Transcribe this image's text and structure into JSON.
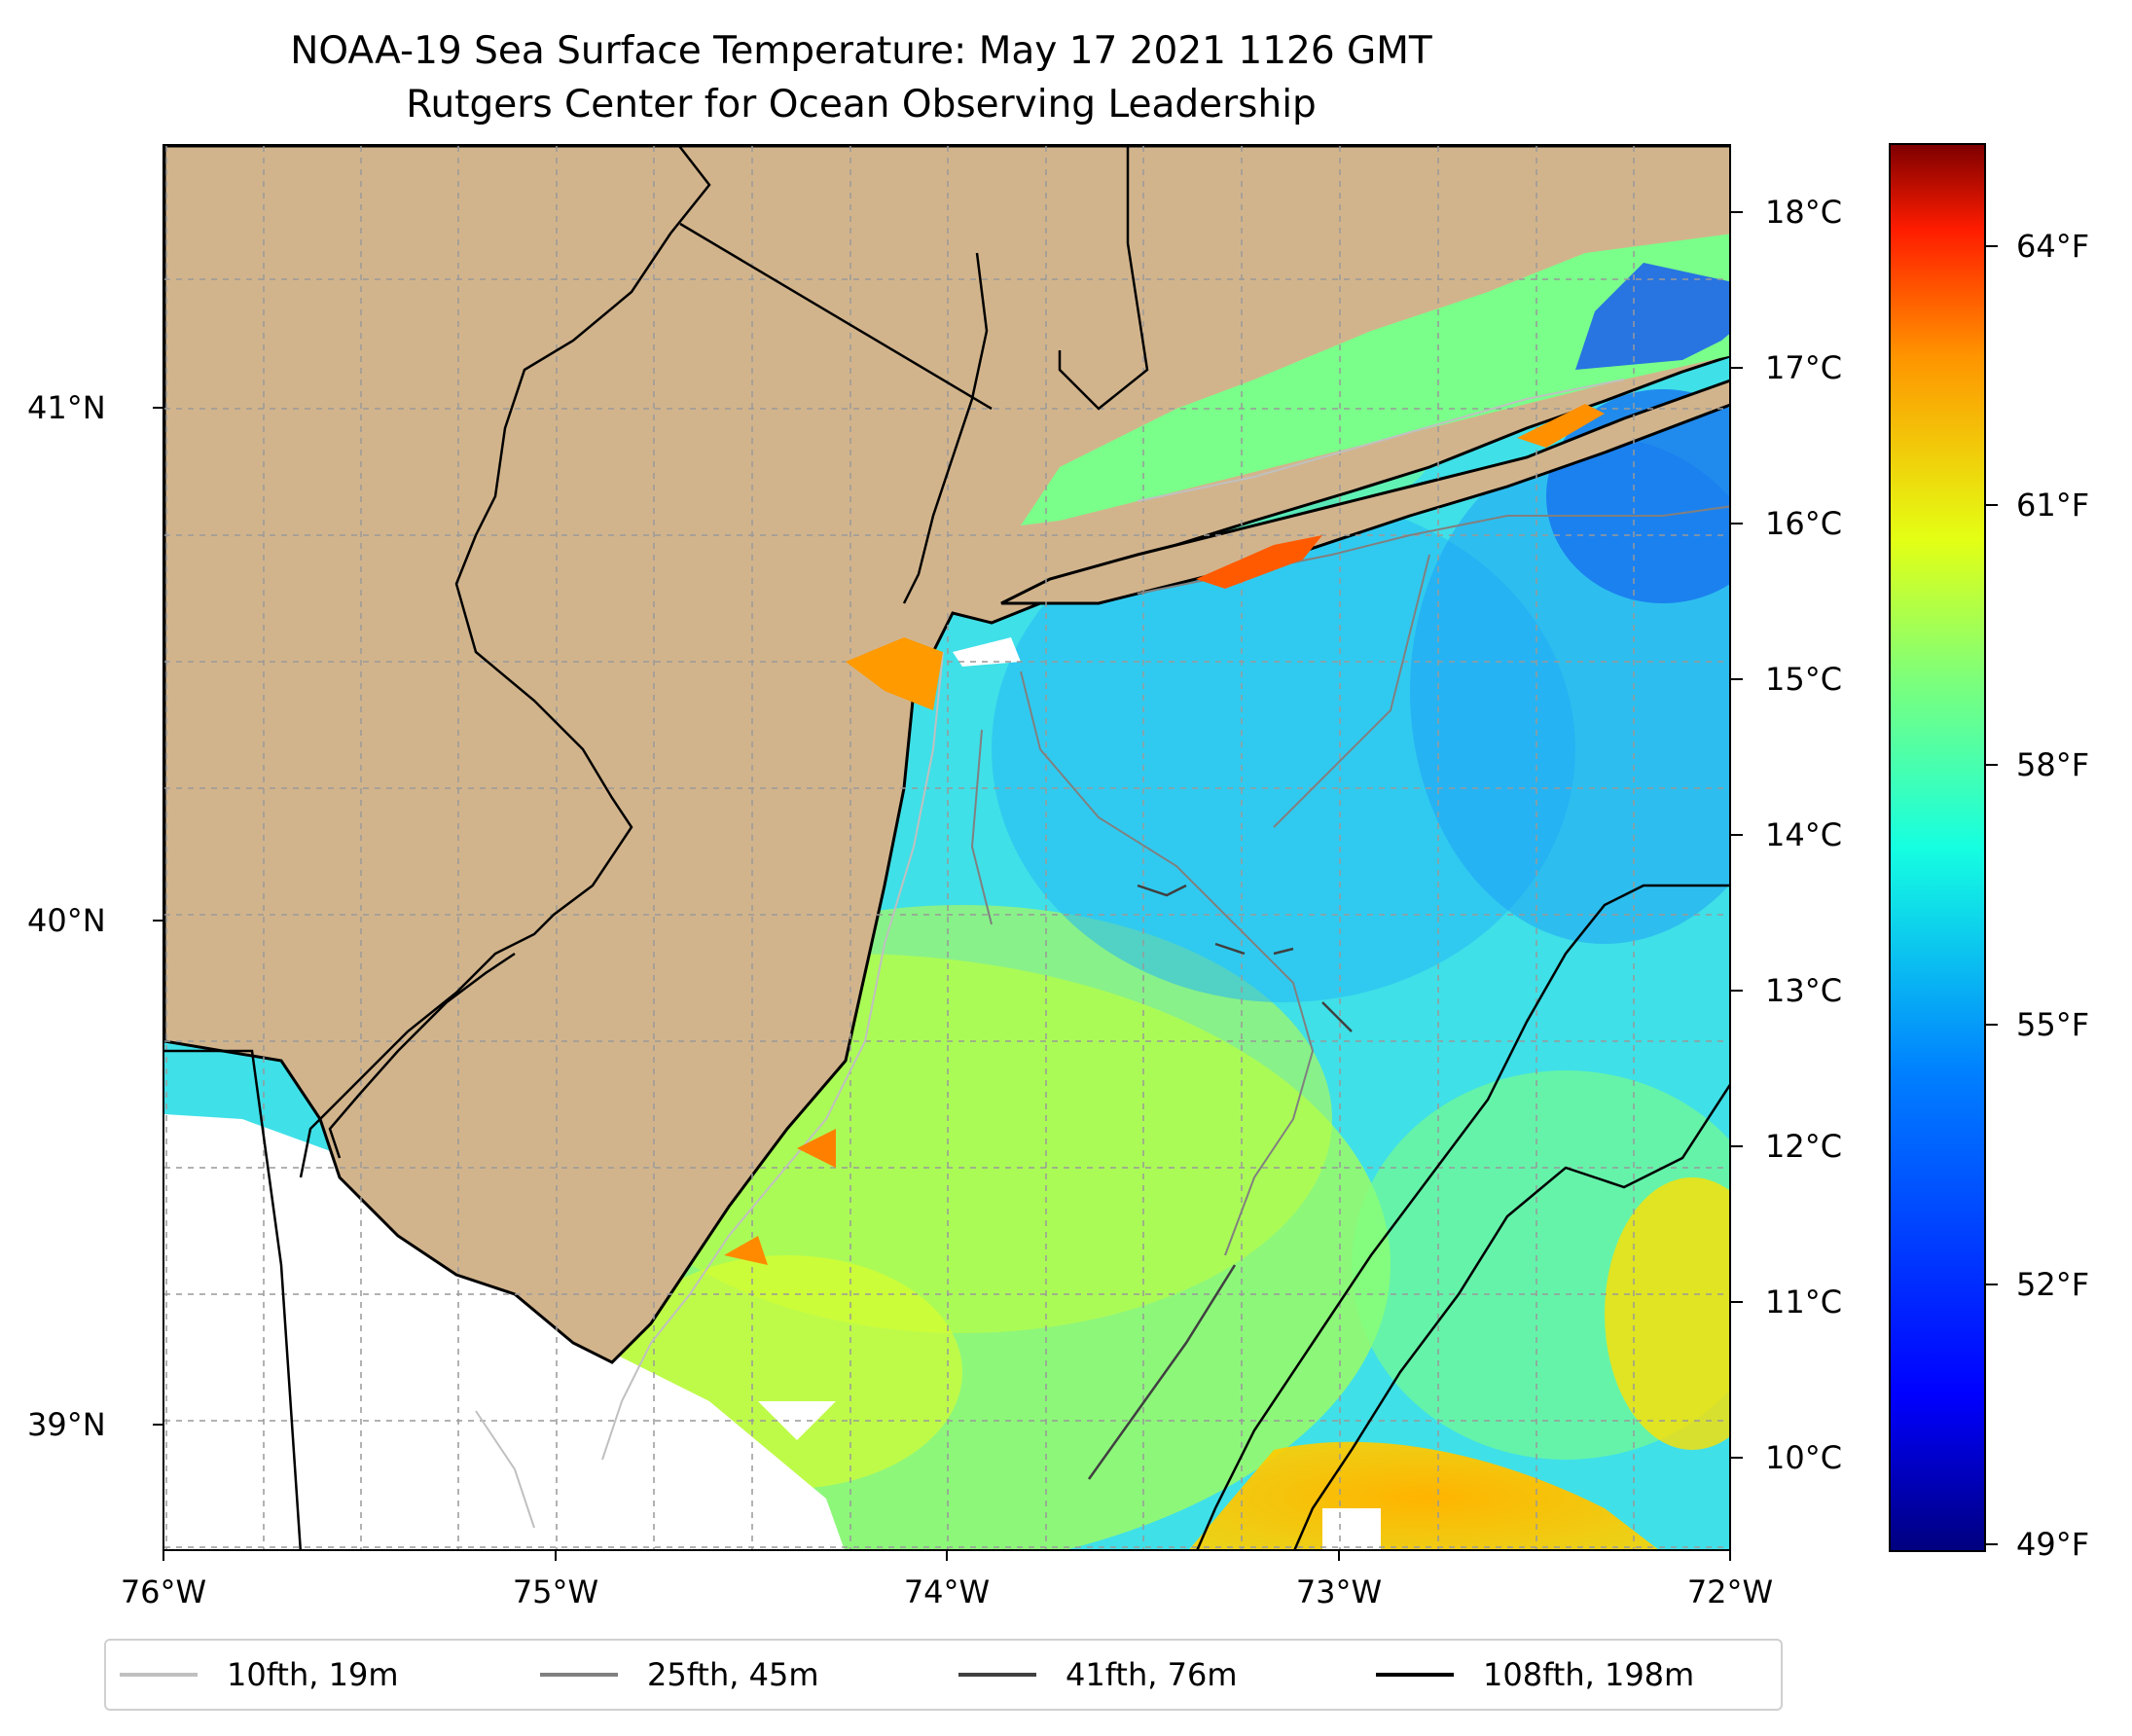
{
  "title": {
    "line1": "NOAA-19 Sea Surface Temperature: May 17 2021 1126 GMT",
    "line2": "Rutgers Center for Ocean Observing Leadership"
  },
  "map": {
    "lon_labels": [
      "76°W",
      "75°W",
      "74°W",
      "73°W",
      "72°W"
    ],
    "lat_labels": [
      "41°N",
      "40°N",
      "39°N"
    ],
    "grid": true,
    "land_color": "#d2b48c",
    "coast_color": "#000000",
    "nodata_color": "#ffffff"
  },
  "colorbar": {
    "colormap": "jet",
    "celsius_labels": [
      "18°C",
      "17°C",
      "16°C",
      "15°C",
      "14°C",
      "13°C",
      "12°C",
      "11°C",
      "10°C"
    ],
    "fahrenheit_labels": [
      "64°F",
      "61°F",
      "58°F",
      "55°F",
      "52°F",
      "49°F"
    ]
  },
  "legend": {
    "items": [
      {
        "label": "10fth, 19m",
        "color": "#c0c0c0"
      },
      {
        "label": "25fth, 45m",
        "color": "#808080"
      },
      {
        "label": "41fth, 76m",
        "color": "#404040"
      },
      {
        "label": "108fth, 198m",
        "color": "#000000"
      }
    ]
  }
}
